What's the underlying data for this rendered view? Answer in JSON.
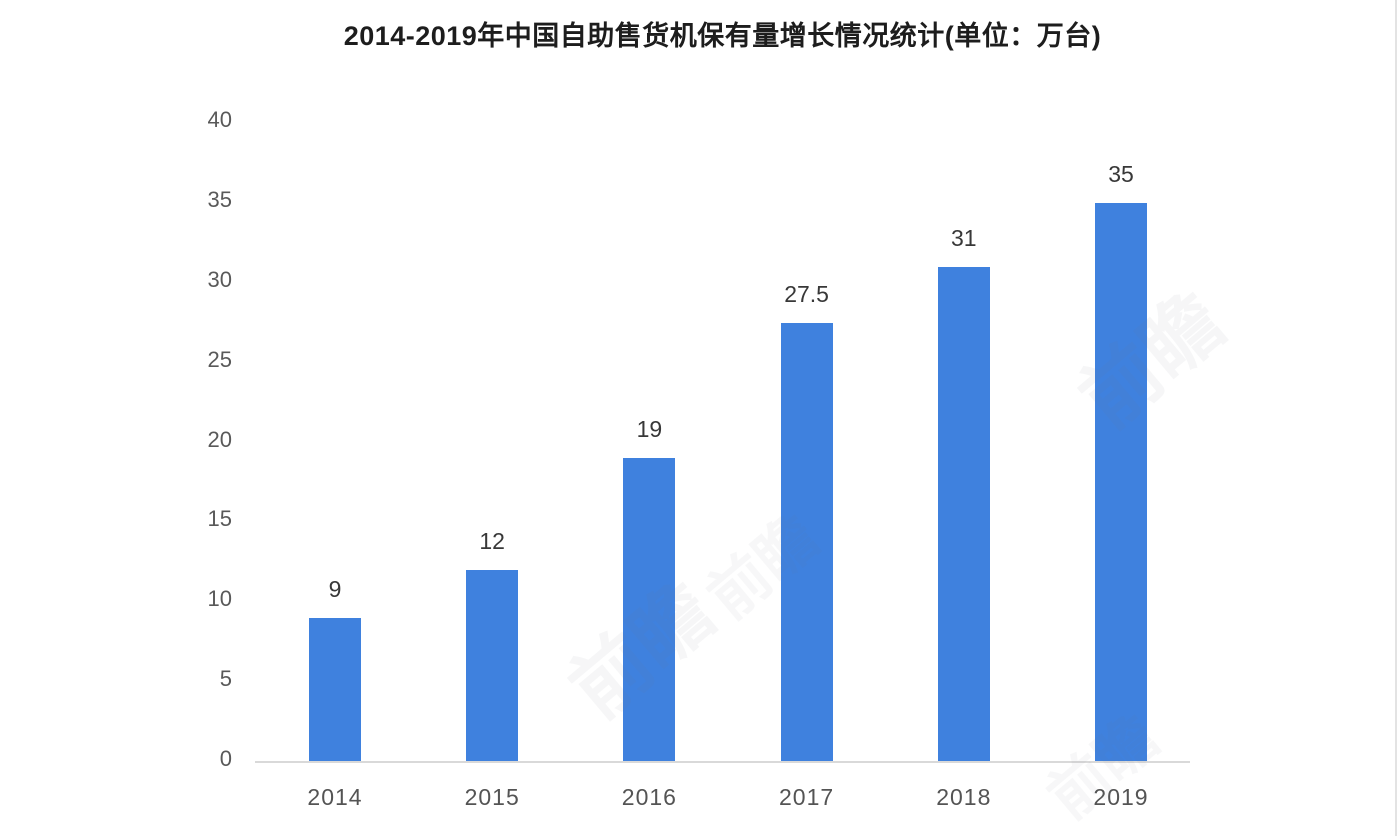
{
  "chart_data": {
    "type": "bar",
    "title": "2014-2019年中国自助售货机保有量增长情况统计(单位：万台)",
    "categories": [
      "2014",
      "2015",
      "2016",
      "2017",
      "2018",
      "2019"
    ],
    "values": [
      9,
      12,
      19,
      27.5,
      31,
      35
    ],
    "value_labels": [
      "9",
      "12",
      "19",
      "27.5",
      "31",
      "35"
    ],
    "xlabel": "",
    "ylabel": "",
    "ylim": [
      0,
      40
    ],
    "yticks": [
      0,
      5,
      10,
      15,
      20,
      25,
      30,
      35,
      40
    ],
    "grid": false,
    "legend": "none",
    "bar_color": "#3f81de",
    "axis_line_color": "#d9d9d9",
    "value_label_color": "#383838",
    "tick_label_color": "#595959",
    "title_color": "#1d1d1d",
    "background_color": "#ffffff"
  },
  "watermark": {
    "text": "前瞻"
  }
}
